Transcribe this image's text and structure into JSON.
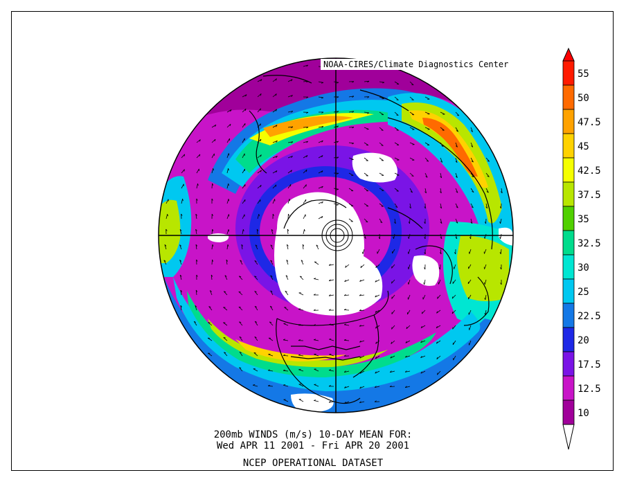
{
  "header": {
    "credit": "NOAA-CIRES/Climate Diagnostics Center"
  },
  "footer": {
    "line1": "200mb WINDS (m/s)   10-DAY MEAN FOR:",
    "line2": "Wed APR 11 2001 - Fri APR 20 2001",
    "line3": "NCEP OPERATIONAL DATASET"
  },
  "colorbar": {
    "levels": [
      "55",
      "50",
      "47.5",
      "45",
      "42.5",
      "37.5",
      "35",
      "32.5",
      "30",
      "25",
      "22.5",
      "20",
      "17.5",
      "12.5",
      "10"
    ],
    "colors": [
      "#ff1a00",
      "#ff6a00",
      "#ffa200",
      "#ffd200",
      "#f5ff00",
      "#b8e600",
      "#50d000",
      "#00dc8c",
      "#00e6d2",
      "#00c8f0",
      "#1478e6",
      "#1e28e6",
      "#7a14e6",
      "#c814c8",
      "#a0009a"
    ]
  },
  "map": {
    "palette": {
      "background": "#ffffff",
      "lowest": "#a0009a",
      "low": "#c814c8",
      "violet": "#7a14e6",
      "blue": "#1e28e6",
      "midblue": "#1478e6",
      "cyan": "#00c8f0",
      "aqua": "#00e6d2",
      "teal": "#00dc8c",
      "green": "#50d000",
      "lime": "#b8e600",
      "yellow": "#f5ff00",
      "gold": "#ffd200",
      "orange": "#ffa200",
      "darkorange": "#ff6a00",
      "coastline": "#000000"
    }
  }
}
